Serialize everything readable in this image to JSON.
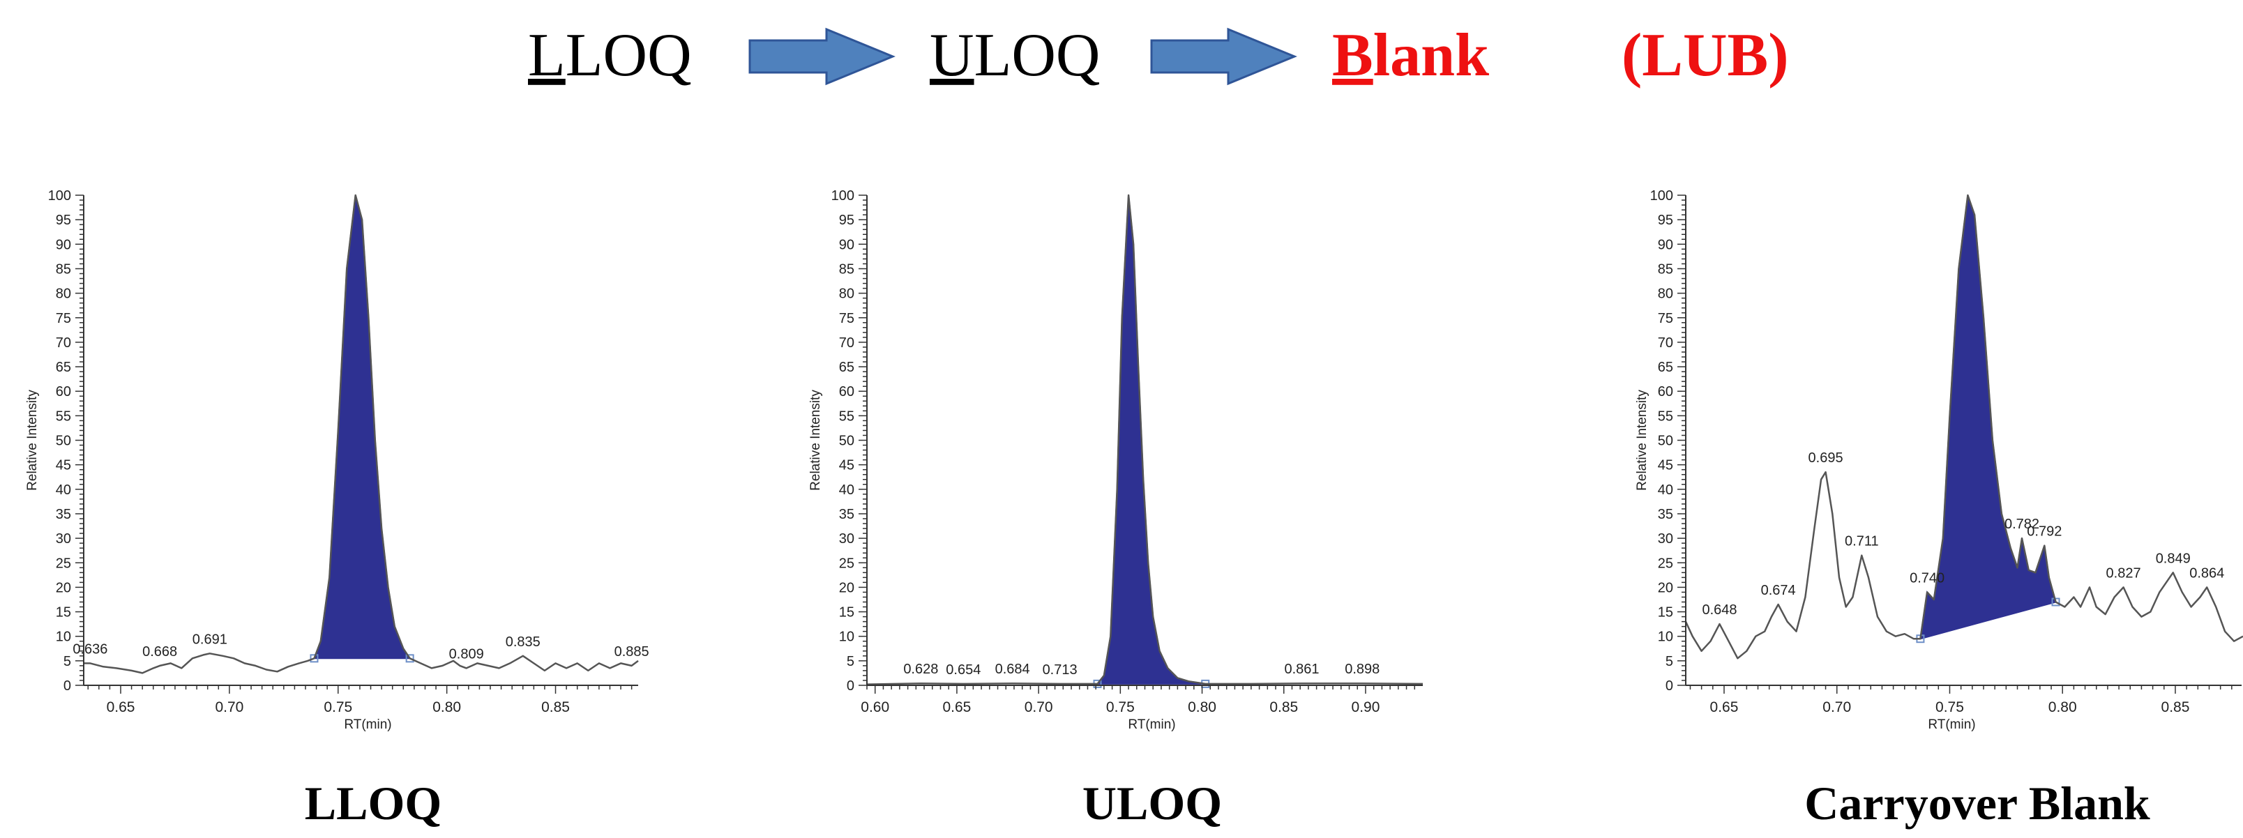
{
  "header": {
    "step1": {
      "underlined": "L",
      "rest": "LOQ"
    },
    "step2": {
      "underlined": "U",
      "rest": "LOQ"
    },
    "step3": {
      "underlined": "B",
      "rest": "lank"
    },
    "acronym": "(LUB)",
    "colors": {
      "text": "#000000",
      "highlight": "#ee1111",
      "arrow_fill": "#4f81bd",
      "arrow_stroke": "#2f5597"
    }
  },
  "colors": {
    "peak_fill": "#2e3192",
    "trace": "#555555",
    "axis": "#333333"
  },
  "chart_data": [
    {
      "type": "line",
      "caption": "LLOQ",
      "ylabel": "Relative Intensity",
      "xlabel": "RT(min)",
      "xlim": [
        0.633,
        0.888
      ],
      "ylim": [
        0,
        100
      ],
      "yticks": [
        0,
        5,
        10,
        15,
        20,
        25,
        30,
        35,
        40,
        45,
        50,
        55,
        60,
        65,
        70,
        75,
        80,
        85,
        90,
        95,
        100
      ],
      "xticks": [
        0.65,
        0.7,
        0.75,
        0.8,
        0.85
      ],
      "xtick_labels": [
        "0.65",
        "0.70",
        "0.75",
        "0.80",
        "0.85"
      ],
      "peak": {
        "rt": 0.758,
        "start": 0.739,
        "end": 0.783,
        "base_start": 5.5,
        "base_end": 5.5
      },
      "trace": [
        [
          0.633,
          4.5
        ],
        [
          0.636,
          4.5
        ],
        [
          0.642,
          3.8
        ],
        [
          0.648,
          3.5
        ],
        [
          0.655,
          3.0
        ],
        [
          0.66,
          2.5
        ],
        [
          0.665,
          3.5
        ],
        [
          0.668,
          4.0
        ],
        [
          0.673,
          4.5
        ],
        [
          0.678,
          3.5
        ],
        [
          0.683,
          5.5
        ],
        [
          0.688,
          6.2
        ],
        [
          0.691,
          6.5
        ],
        [
          0.697,
          6.0
        ],
        [
          0.702,
          5.5
        ],
        [
          0.707,
          4.5
        ],
        [
          0.712,
          4.0
        ],
        [
          0.717,
          3.2
        ],
        [
          0.722,
          2.8
        ],
        [
          0.727,
          3.8
        ],
        [
          0.732,
          4.5
        ],
        [
          0.736,
          5.0
        ],
        [
          0.739,
          5.5
        ],
        [
          0.742,
          9.0
        ],
        [
          0.746,
          22.0
        ],
        [
          0.75,
          52.0
        ],
        [
          0.754,
          85.0
        ],
        [
          0.758,
          100.0
        ],
        [
          0.761,
          95.0
        ],
        [
          0.764,
          75.0
        ],
        [
          0.767,
          50.0
        ],
        [
          0.77,
          32.0
        ],
        [
          0.773,
          20.0
        ],
        [
          0.776,
          12.0
        ],
        [
          0.78,
          7.5
        ],
        [
          0.783,
          5.5
        ],
        [
          0.788,
          4.5
        ],
        [
          0.793,
          3.5
        ],
        [
          0.798,
          4.0
        ],
        [
          0.803,
          5.0
        ],
        [
          0.806,
          4.0
        ],
        [
          0.809,
          3.5
        ],
        [
          0.814,
          4.5
        ],
        [
          0.819,
          4.0
        ],
        [
          0.824,
          3.5
        ],
        [
          0.829,
          4.5
        ],
        [
          0.835,
          6.0
        ],
        [
          0.84,
          4.5
        ],
        [
          0.845,
          3.0
        ],
        [
          0.85,
          4.5
        ],
        [
          0.855,
          3.5
        ],
        [
          0.86,
          4.5
        ],
        [
          0.865,
          3.0
        ],
        [
          0.87,
          4.5
        ],
        [
          0.875,
          3.5
        ],
        [
          0.88,
          4.5
        ],
        [
          0.885,
          4.0
        ],
        [
          0.888,
          5.0
        ]
      ],
      "peak_labels": [
        {
          "text": "0.636",
          "rt": 0.636,
          "y": 4.5
        },
        {
          "text": "0.668",
          "rt": 0.668,
          "y": 4.0
        },
        {
          "text": "0.691",
          "rt": 0.691,
          "y": 6.5
        },
        {
          "text": "0.809",
          "rt": 0.809,
          "y": 3.5
        },
        {
          "text": "0.835",
          "rt": 0.835,
          "y": 6.0
        },
        {
          "text": "0.885",
          "rt": 0.885,
          "y": 4.0
        }
      ]
    },
    {
      "type": "line",
      "caption": "ULOQ",
      "ylabel": "Relative Intensity",
      "xlabel": "RT(min)",
      "xlim": [
        0.595,
        0.935
      ],
      "ylim": [
        0,
        100
      ],
      "yticks": [
        0,
        5,
        10,
        15,
        20,
        25,
        30,
        35,
        40,
        45,
        50,
        55,
        60,
        65,
        70,
        75,
        80,
        85,
        90,
        95,
        100
      ],
      "xticks": [
        0.6,
        0.65,
        0.7,
        0.75,
        0.8,
        0.85,
        0.9
      ],
      "xtick_labels": [
        "0.60",
        "0.65",
        "0.70",
        "0.75",
        "0.80",
        "0.85",
        "0.90"
      ],
      "peak": {
        "rt": 0.755,
        "start": 0.736,
        "end": 0.802,
        "base_start": 0.3,
        "base_end": 0.3
      },
      "trace": [
        [
          0.595,
          0.2
        ],
        [
          0.628,
          0.4
        ],
        [
          0.654,
          0.3
        ],
        [
          0.684,
          0.4
        ],
        [
          0.713,
          0.3
        ],
        [
          0.73,
          0.3
        ],
        [
          0.736,
          0.3
        ],
        [
          0.74,
          2.0
        ],
        [
          0.744,
          10.0
        ],
        [
          0.748,
          40.0
        ],
        [
          0.751,
          75.0
        ],
        [
          0.755,
          100.0
        ],
        [
          0.758,
          90.0
        ],
        [
          0.761,
          65.0
        ],
        [
          0.764,
          42.0
        ],
        [
          0.767,
          25.0
        ],
        [
          0.77,
          14.0
        ],
        [
          0.774,
          7.0
        ],
        [
          0.779,
          3.5
        ],
        [
          0.785,
          1.5
        ],
        [
          0.792,
          0.8
        ],
        [
          0.802,
          0.3
        ],
        [
          0.83,
          0.3
        ],
        [
          0.861,
          0.4
        ],
        [
          0.898,
          0.4
        ],
        [
          0.935,
          0.3
        ]
      ],
      "peak_labels": [
        {
          "text": "0.628",
          "rt": 0.628,
          "y": 0.4
        },
        {
          "text": "0.654",
          "rt": 0.654,
          "y": 0.3
        },
        {
          "text": "0.684",
          "rt": 0.684,
          "y": 0.4
        },
        {
          "text": "0.713",
          "rt": 0.713,
          "y": 0.3
        },
        {
          "text": "0.861",
          "rt": 0.861,
          "y": 0.4
        },
        {
          "text": "0.898",
          "rt": 0.898,
          "y": 0.4
        }
      ]
    },
    {
      "type": "line",
      "caption": "Carryover Blank",
      "ylabel": "Relative Intensity",
      "xlabel": "RT(min)",
      "xlim": [
        0.633,
        0.88
      ],
      "ylim": [
        0,
        100
      ],
      "yticks": [
        0,
        5,
        10,
        15,
        20,
        25,
        30,
        35,
        40,
        45,
        50,
        55,
        60,
        65,
        70,
        75,
        80,
        85,
        90,
        95,
        100
      ],
      "xticks": [
        0.65,
        0.7,
        0.75,
        0.8,
        0.85
      ],
      "xtick_labels": [
        "0.65",
        "0.70",
        "0.75",
        "0.80",
        "0.85"
      ],
      "peak": {
        "rt": 0.758,
        "start": 0.737,
        "end": 0.797,
        "base_start": 9.5,
        "base_end": 17.0
      },
      "trace": [
        [
          0.633,
          13.0
        ],
        [
          0.636,
          10.0
        ],
        [
          0.64,
          7.0
        ],
        [
          0.644,
          9.0
        ],
        [
          0.648,
          12.5
        ],
        [
          0.652,
          9.0
        ],
        [
          0.656,
          5.5
        ],
        [
          0.66,
          7.0
        ],
        [
          0.664,
          10.0
        ],
        [
          0.668,
          11.0
        ],
        [
          0.671,
          14.0
        ],
        [
          0.674,
          16.5
        ],
        [
          0.678,
          13.0
        ],
        [
          0.682,
          11.0
        ],
        [
          0.686,
          18.0
        ],
        [
          0.69,
          32.0
        ],
        [
          0.693,
          42.0
        ],
        [
          0.695,
          43.5
        ],
        [
          0.698,
          35.0
        ],
        [
          0.701,
          22.0
        ],
        [
          0.704,
          16.0
        ],
        [
          0.707,
          18.0
        ],
        [
          0.711,
          26.5
        ],
        [
          0.714,
          22.0
        ],
        [
          0.718,
          14.0
        ],
        [
          0.722,
          11.0
        ],
        [
          0.726,
          10.0
        ],
        [
          0.73,
          10.5
        ],
        [
          0.734,
          9.5
        ],
        [
          0.737,
          9.5
        ],
        [
          0.74,
          19.0
        ],
        [
          0.743,
          17.5
        ],
        [
          0.747,
          30.0
        ],
        [
          0.75,
          55.0
        ],
        [
          0.754,
          85.0
        ],
        [
          0.758,
          100.0
        ],
        [
          0.761,
          96.0
        ],
        [
          0.765,
          75.0
        ],
        [
          0.769,
          50.0
        ],
        [
          0.773,
          35.0
        ],
        [
          0.777,
          28.0
        ],
        [
          0.78,
          24.0
        ],
        [
          0.782,
          30.0
        ],
        [
          0.785,
          23.5
        ],
        [
          0.788,
          23.0
        ],
        [
          0.792,
          28.5
        ],
        [
          0.794,
          22.0
        ],
        [
          0.797,
          17.0
        ],
        [
          0.801,
          16.0
        ],
        [
          0.805,
          18.0
        ],
        [
          0.808,
          16.0
        ],
        [
          0.812,
          20.0
        ],
        [
          0.815,
          16.0
        ],
        [
          0.819,
          14.5
        ],
        [
          0.823,
          18.0
        ],
        [
          0.827,
          20.0
        ],
        [
          0.831,
          16.0
        ],
        [
          0.835,
          14.0
        ],
        [
          0.839,
          15.0
        ],
        [
          0.843,
          19.0
        ],
        [
          0.849,
          23.0
        ],
        [
          0.853,
          19.0
        ],
        [
          0.857,
          16.0
        ],
        [
          0.861,
          18.0
        ],
        [
          0.864,
          20.0
        ],
        [
          0.868,
          16.0
        ],
        [
          0.872,
          11.0
        ],
        [
          0.876,
          9.0
        ],
        [
          0.88,
          10.0
        ]
      ],
      "peak_labels": [
        {
          "text": "0.648",
          "rt": 0.648,
          "y": 12.5
        },
        {
          "text": "0.674",
          "rt": 0.674,
          "y": 16.5
        },
        {
          "text": "0.695",
          "rt": 0.695,
          "y": 43.5
        },
        {
          "text": "0.711",
          "rt": 0.711,
          "y": 26.5
        },
        {
          "text": "0.740",
          "rt": 0.74,
          "y": 19.0
        },
        {
          "text": "0.782",
          "rt": 0.782,
          "y": 30.0
        },
        {
          "text": "0.792",
          "rt": 0.792,
          "y": 28.5
        },
        {
          "text": "0.827",
          "rt": 0.827,
          "y": 20.0
        },
        {
          "text": "0.849",
          "rt": 0.849,
          "y": 23.0
        },
        {
          "text": "0.864",
          "rt": 0.864,
          "y": 20.0
        }
      ]
    }
  ]
}
